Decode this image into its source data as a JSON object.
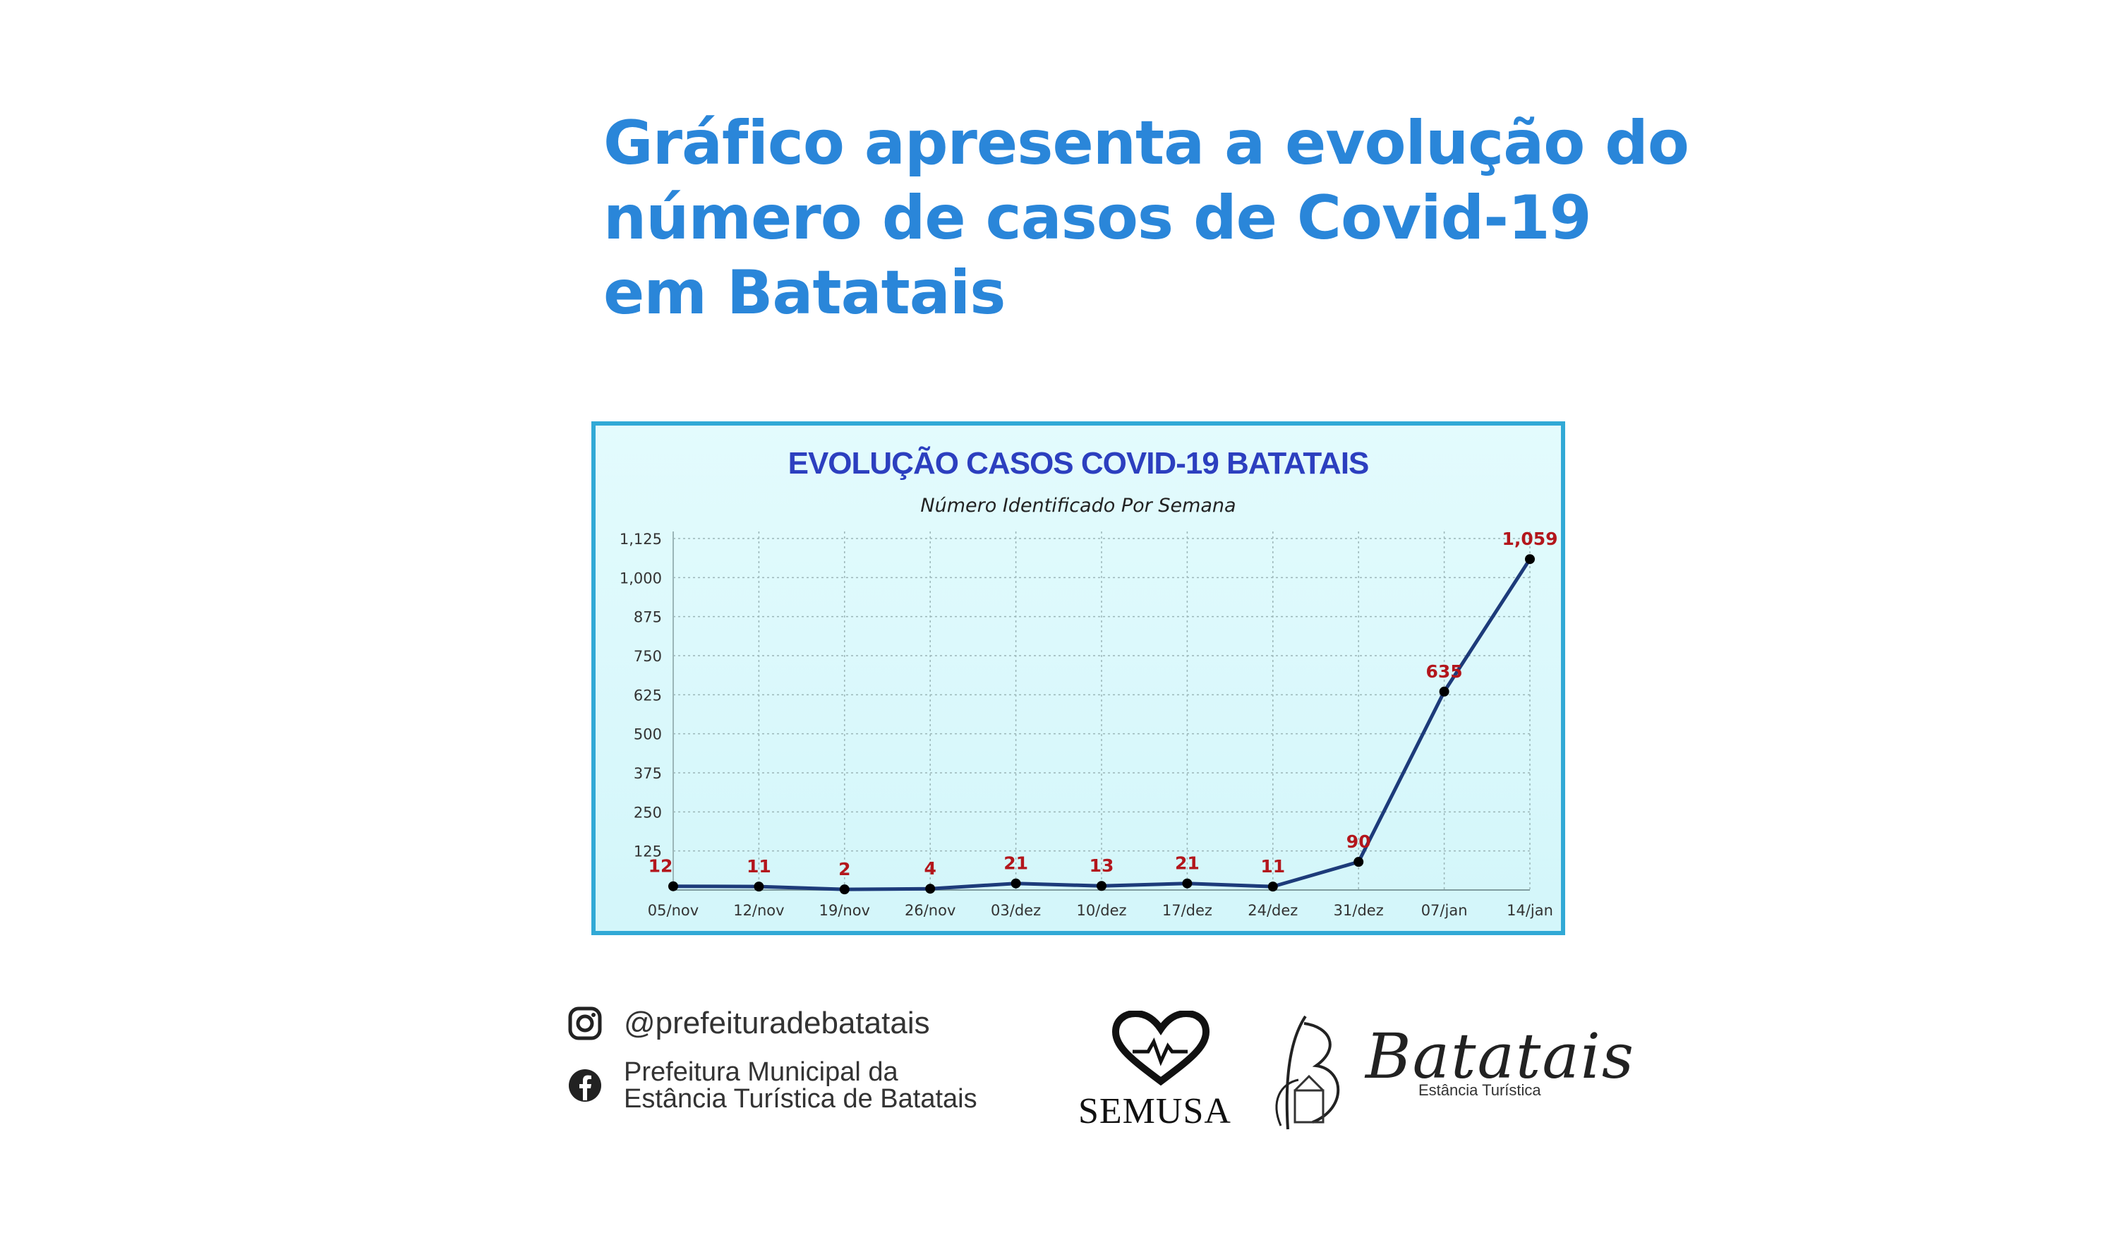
{
  "headline": {
    "line1": "Gráfico apresenta a evolução do",
    "line2": "número de casos de Covid-19",
    "line3": "em Batatais"
  },
  "chart_data": {
    "type": "line",
    "title": "EVOLUÇÃO CASOS COVID-19 BATATAIS",
    "subtitle": "Número Identificado Por Semana",
    "categories": [
      "05/nov",
      "12/nov",
      "19/nov",
      "26/nov",
      "03/dez",
      "10/dez",
      "17/dez",
      "24/dez",
      "31/dez",
      "07/jan",
      "14/jan"
    ],
    "values": [
      12,
      11,
      2,
      4,
      21,
      13,
      21,
      11,
      90,
      635,
      1059
    ],
    "data_labels": [
      "12",
      "11",
      "2",
      "4",
      "21",
      "13",
      "21",
      "11",
      "90",
      "635",
      "1,059"
    ],
    "ylim": [
      0,
      1125
    ],
    "yticks": [
      125,
      250,
      375,
      500,
      625,
      750,
      875,
      1000,
      1125
    ],
    "ytick_labels": [
      "125",
      "250",
      "375",
      "500",
      "625",
      "750",
      "875",
      "1,000",
      "1,125"
    ],
    "grid": true,
    "colors": {
      "line": "#1d3b7a",
      "label": "#b3161c",
      "title": "#2c3fbf",
      "border": "#31a9d6"
    }
  },
  "footer": {
    "instagram": "@prefeituradebatatais",
    "facebook_line1": "Prefeitura Municipal da",
    "facebook_line2": "Estância Turística de Batatais",
    "logo_semusa": "SEMUSA",
    "logo_batatais": "Batatais",
    "logo_batatais_sub": "Estância Turística"
  }
}
